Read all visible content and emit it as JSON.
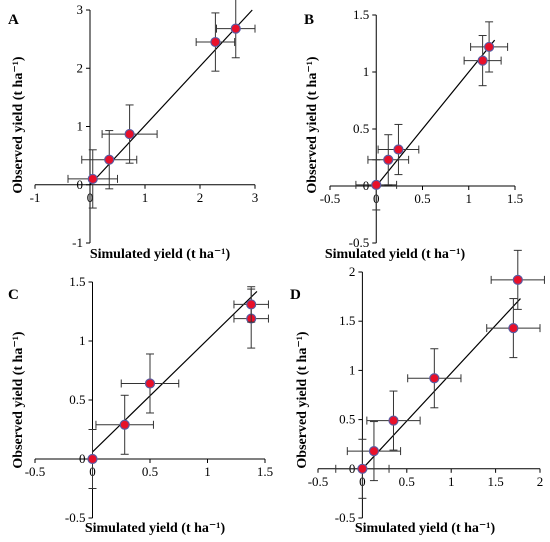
{
  "figure": {
    "xlabel": "Simulated yield (t ha⁻¹)",
    "ylabel": "Observed yield (t ha⁻¹)"
  },
  "chart_data": [
    {
      "panel": "A",
      "type": "scatter",
      "xlim": [
        -1,
        3
      ],
      "ylim": [
        -1,
        3
      ],
      "xticks": [
        "-1",
        "0",
        "1",
        "2",
        "3"
      ],
      "yticks": [
        "-1",
        "0",
        "1",
        "2",
        "3"
      ],
      "points": [
        {
          "x": 0.05,
          "y": 0.1,
          "xerr": 0.45,
          "yerr": 0.5
        },
        {
          "x": 0.35,
          "y": 0.43,
          "xerr": 0.5,
          "yerr": 0.5
        },
        {
          "x": 0.72,
          "y": 0.87,
          "xerr": 0.5,
          "yerr": 0.5
        },
        {
          "x": 2.28,
          "y": 2.45,
          "xerr": 0.35,
          "yerr": 0.5
        },
        {
          "x": 2.65,
          "y": 2.68,
          "xerr": 0.35,
          "yerr": 0.5
        }
      ],
      "line": {
        "x": [
          0.0,
          2.95
        ],
        "y": [
          0.0,
          3.0
        ]
      },
      "marker_color": "#e8102a",
      "marker_edge": "#5a5aa0"
    },
    {
      "panel": "B",
      "type": "scatter",
      "xlim": [
        -0.5,
        1.5
      ],
      "ylim": [
        -0.5,
        1.5
      ],
      "xticks": [
        "-0.5",
        "0",
        "0.5",
        "1",
        "1.5"
      ],
      "yticks": [
        "-0.5",
        "0",
        "0.5",
        "1",
        "1.5"
      ],
      "points": [
        {
          "x": 0.0,
          "y": 0.01,
          "xerr": 0.22,
          "yerr": 0.22
        },
        {
          "x": 0.13,
          "y": 0.23,
          "xerr": 0.22,
          "yerr": 0.22
        },
        {
          "x": 0.24,
          "y": 0.32,
          "xerr": 0.22,
          "yerr": 0.22
        },
        {
          "x": 1.15,
          "y": 1.1,
          "xerr": 0.2,
          "yerr": 0.22
        },
        {
          "x": 1.22,
          "y": 1.22,
          "xerr": 0.2,
          "yerr": 0.22
        }
      ],
      "line": {
        "x": [
          0.0,
          1.28
        ],
        "y": [
          0.0,
          1.28
        ]
      },
      "marker_color": "#e8102a",
      "marker_edge": "#5a5aa0"
    },
    {
      "panel": "C",
      "type": "scatter",
      "xlim": [
        -0.5,
        1.5
      ],
      "ylim": [
        -0.5,
        1.5
      ],
      "xticks": [
        "-0.5",
        "0",
        "0.5",
        "1",
        "1.5"
      ],
      "yticks": [
        "-0.5",
        "0",
        "0.5",
        "1",
        "1.5"
      ],
      "points": [
        {
          "x": 0.0,
          "y": 0.0,
          "xerr": 0.0,
          "yerr": 0.25
        },
        {
          "x": 0.28,
          "y": 0.29,
          "xerr": 0.25,
          "yerr": 0.25
        },
        {
          "x": 0.5,
          "y": 0.64,
          "xerr": 0.25,
          "yerr": 0.25
        },
        {
          "x": 1.38,
          "y": 1.19,
          "xerr": 0.15,
          "yerr": 0.25
        },
        {
          "x": 1.38,
          "y": 1.31,
          "xerr": 0.15,
          "yerr": 0.15
        }
      ],
      "line": {
        "x": [
          0.0,
          1.43
        ],
        "y": [
          0.06,
          1.42
        ]
      },
      "marker_color": "#e8102a",
      "marker_edge": "#5a5aa0"
    },
    {
      "panel": "D",
      "type": "scatter",
      "xlim": [
        -0.5,
        2
      ],
      "ylim": [
        -0.5,
        2
      ],
      "xticks": [
        "-0.5",
        "0",
        "0.5",
        "1",
        "1.5",
        "2"
      ],
      "yticks": [
        "-0.5",
        "0",
        "0.5",
        "1",
        "1.5",
        "2"
      ],
      "points": [
        {
          "x": 0.0,
          "y": 0.0,
          "xerr": 0.3,
          "yerr": 0.3
        },
        {
          "x": 0.13,
          "y": 0.18,
          "xerr": 0.3,
          "yerr": 0.3
        },
        {
          "x": 0.35,
          "y": 0.49,
          "xerr": 0.3,
          "yerr": 0.3
        },
        {
          "x": 0.81,
          "y": 0.92,
          "xerr": 0.3,
          "yerr": 0.3
        },
        {
          "x": 1.7,
          "y": 1.43,
          "xerr": 0.3,
          "yerr": 0.3
        },
        {
          "x": 1.75,
          "y": 1.92,
          "xerr": 0.3,
          "yerr": 0.3
        }
      ],
      "line": {
        "x": [
          0.0,
          1.78
        ],
        "y": [
          0.0,
          1.73
        ]
      },
      "marker_color": "#e8102a",
      "marker_edge": "#5a5aa0"
    }
  ]
}
